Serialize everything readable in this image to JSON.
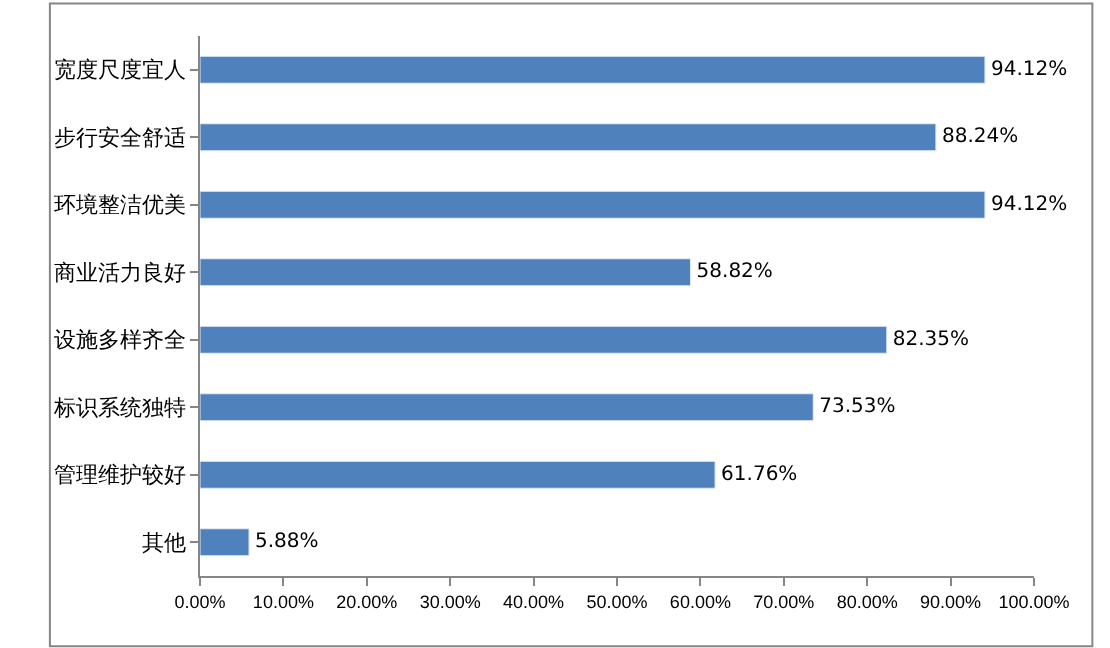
{
  "chart_data": {
    "type": "bar",
    "orientation": "horizontal",
    "categories": [
      "宽度尺度宜人",
      "步行安全舒适",
      "环境整洁优美",
      "商业活力良好",
      "设施多样齐全",
      "标识系统独特",
      "管理维护较好",
      "其他"
    ],
    "values": [
      94.12,
      88.24,
      94.12,
      58.82,
      82.35,
      73.53,
      61.76,
      5.88
    ],
    "value_labels": [
      "94.12%",
      "88.24%",
      "94.12%",
      "58.82%",
      "82.35%",
      "73.53%",
      "61.76%",
      "5.88%"
    ],
    "color": "#4f81bd",
    "xlim": [
      0,
      100
    ],
    "xticks": [
      {
        "value": 0,
        "label": "0.00%"
      },
      {
        "value": 10,
        "label": "10.00%"
      },
      {
        "value": 20,
        "label": "20.00%"
      },
      {
        "value": 30,
        "label": "30.00%"
      },
      {
        "value": 40,
        "label": "40.00%"
      },
      {
        "value": 50,
        "label": "50.00%"
      },
      {
        "value": 60,
        "label": "60.00%"
      },
      {
        "value": 70,
        "label": "70.00%"
      },
      {
        "value": 80,
        "label": "80.00%"
      },
      {
        "value": 90,
        "label": "90.00%"
      },
      {
        "value": 100,
        "label": "100.00%"
      }
    ],
    "grid": false
  }
}
